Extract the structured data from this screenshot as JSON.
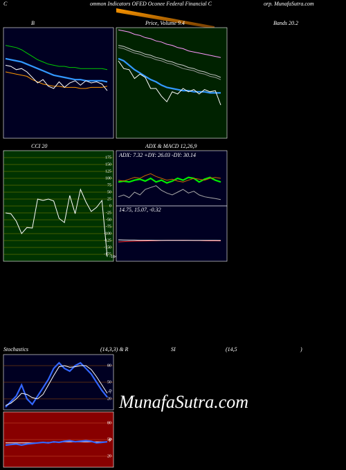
{
  "header": {
    "left": "C",
    "middle": "ommon  Indicators OFED Oconee   Federal Financial C",
    "right": "orp. MunafaSutra.com"
  },
  "watermark": "MunafaSutra.com",
  "chart_data": [
    {
      "type": "line",
      "title": "B",
      "title_right": "Bands 20.2",
      "ylim": [
        0,
        100
      ],
      "background": "#000022",
      "border": "#ffffff",
      "series": [
        {
          "name": "upper",
          "color": "#00cc00",
          "values": [
            84,
            83,
            82,
            80,
            77,
            74,
            71,
            69,
            67,
            66,
            65,
            65,
            64,
            64,
            63,
            63,
            63,
            63,
            63,
            62
          ]
        },
        {
          "name": "middle",
          "color": "#3399ff",
          "values": [
            72,
            71,
            70,
            69,
            67,
            65,
            63,
            61,
            59,
            57,
            56,
            55,
            54,
            53,
            53,
            52,
            52,
            52,
            52,
            51
          ]
        },
        {
          "name": "lower",
          "color": "#ff9900",
          "values": [
            60,
            59,
            58,
            57,
            56,
            53,
            51,
            49,
            48,
            47,
            47,
            46,
            46,
            46,
            45,
            45,
            46,
            46,
            46,
            47
          ]
        },
        {
          "name": "price",
          "color": "#ffffff",
          "values": [
            66,
            65,
            62,
            63,
            60,
            55,
            50,
            53,
            47,
            45,
            51,
            46,
            50,
            52,
            48,
            52,
            50,
            51,
            49,
            43
          ]
        }
      ]
    },
    {
      "type": "line",
      "title": "Price,  Volume  9.4",
      "ylim": [
        0,
        100
      ],
      "background": "#002200",
      "border": "#ffffff",
      "series": [
        {
          "name": "ma-long",
          "color": "#ff99ff",
          "values": [
            98,
            97,
            96,
            94,
            93,
            91,
            90,
            88,
            87,
            85,
            84,
            82,
            81,
            79,
            78,
            77,
            76,
            75,
            74,
            73
          ]
        },
        {
          "name": "ma-upper",
          "color": "#cccccc",
          "values": [
            84,
            83,
            81,
            79,
            78,
            76,
            75,
            73,
            72,
            70,
            69,
            67,
            66,
            64,
            63,
            61,
            60,
            58,
            57,
            55
          ]
        },
        {
          "name": "ma-lower",
          "color": "#999999",
          "values": [
            82,
            81,
            79,
            77,
            76,
            74,
            73,
            71,
            70,
            68,
            67,
            65,
            63,
            62,
            61,
            59,
            58,
            56,
            55,
            53
          ]
        },
        {
          "name": "ma-short",
          "color": "#3399ff",
          "values": [
            72,
            70,
            66,
            62,
            59,
            56,
            53,
            51,
            48,
            46,
            45,
            44,
            43,
            43,
            42,
            42,
            42,
            41,
            41,
            41
          ]
        },
        {
          "name": "price",
          "color": "#ffffff",
          "values": [
            70,
            63,
            62,
            54,
            58,
            55,
            45,
            45,
            38,
            33,
            42,
            40,
            45,
            42,
            44,
            40,
            44,
            42,
            43,
            30
          ]
        }
      ]
    },
    {
      "type": "line",
      "title": "CCI 20",
      "ylim": [
        -200,
        200
      ],
      "yticks": [
        175,
        150,
        125,
        100,
        75,
        50,
        25,
        0,
        -25,
        -50,
        -75,
        -100,
        -125,
        -150,
        -175
      ],
      "grid": true,
      "grid_color": "#888800",
      "background": "#003300",
      "border": "#ffffff",
      "last_value_label": true,
      "series": [
        {
          "name": "cci",
          "color": "#ffffff",
          "values": [
            -25,
            -28,
            -55,
            -100,
            -78,
            -80,
            25,
            20,
            25,
            18,
            -45,
            -60,
            38,
            -28,
            60,
            15,
            -20,
            -5,
            20,
            -184
          ]
        }
      ]
    },
    {
      "type": "line",
      "title": "ADX  & MACD 12,26,9",
      "subtitle": "ADX: 7.32  +DY: 26.03 -DY: 30.14",
      "ylim": [
        0,
        60
      ],
      "background": "#000022",
      "border": "#ffffff",
      "series": [
        {
          "name": "plus-dy",
          "color": "#00ee00",
          "values": [
            26,
            27,
            26,
            28,
            29,
            27,
            30,
            26,
            28,
            25,
            27,
            30,
            28,
            31,
            30,
            26,
            29,
            31,
            28,
            26
          ]
        },
        {
          "name": "minus-dy",
          "color": "#cc6600",
          "values": [
            28,
            27,
            29,
            31,
            30,
            33,
            35,
            32,
            30,
            28,
            29,
            27,
            26,
            28,
            30,
            29,
            28,
            30,
            31,
            30
          ]
        },
        {
          "name": "adx",
          "color": "#aaaaaa",
          "values": [
            10,
            12,
            9,
            15,
            12,
            18,
            20,
            22,
            17,
            14,
            12,
            15,
            18,
            14,
            16,
            12,
            10,
            9,
            8,
            7
          ]
        }
      ]
    },
    {
      "type": "line",
      "title": "14.75,  15.07,  -0.32",
      "ylim": [
        0,
        40
      ],
      "background": "#000022",
      "border": "#ffffff",
      "series": [
        {
          "name": "macd",
          "color": "#ff3333",
          "values": [
            14,
            14.2,
            14.4,
            14.5,
            14.6,
            14.7,
            14.8,
            14.9,
            15,
            15.1,
            15.1,
            15.1,
            15.2,
            15.1,
            15,
            15,
            14.9,
            14.8,
            14.8,
            14.75
          ]
        },
        {
          "name": "signal",
          "color": "#ffffff",
          "values": [
            15.5,
            15.4,
            15.3,
            15.3,
            15.2,
            15.2,
            15.2,
            15.1,
            15.1,
            15.1,
            15.1,
            15.1,
            15.1,
            15.1,
            15.1,
            15.1,
            15.1,
            15.1,
            15.1,
            15.07
          ]
        }
      ]
    },
    {
      "type": "line",
      "title": "Stochastics",
      "title_parts": [
        "(14,3,3) & R",
        "SI",
        "(14,5",
        ")"
      ],
      "ylim": [
        0,
        100
      ],
      "yticks": [
        80,
        50,
        20
      ],
      "grid": true,
      "grid_color": "#aa5500",
      "background": "#000022",
      "border": "#ffffff",
      "last_value_label": true,
      "series": [
        {
          "name": "k",
          "color": "#3366ff",
          "values": [
            5,
            15,
            25,
            45,
            20,
            10,
            25,
            40,
            55,
            75,
            85,
            75,
            70,
            80,
            85,
            75,
            65,
            50,
            35,
            23
          ]
        },
        {
          "name": "d",
          "color": "#ffffff",
          "values": [
            8,
            12,
            20,
            30,
            28,
            22,
            20,
            28,
            45,
            62,
            78,
            80,
            77,
            78,
            80,
            80,
            73,
            60,
            45,
            30
          ]
        }
      ]
    },
    {
      "type": "line",
      "ylim": [
        0,
        100
      ],
      "yticks": [
        80,
        50,
        20
      ],
      "grid": true,
      "grid_color": "#cc5533",
      "background": "#880000",
      "border": "#ffffff",
      "last_value_label": true,
      "series": [
        {
          "name": "signal",
          "color": "#ffffff",
          "values": [
            44,
            44,
            44,
            44,
            44,
            44,
            44,
            45,
            45,
            45,
            45,
            46,
            46,
            46,
            46,
            46,
            46,
            46,
            46,
            46
          ]
        },
        {
          "name": "rsi",
          "color": "#3366ff",
          "values": [
            40,
            41,
            42,
            40,
            42,
            43,
            44,
            45,
            44,
            46,
            45,
            47,
            48,
            46,
            47,
            48,
            47,
            44,
            45,
            46
          ]
        }
      ]
    }
  ]
}
